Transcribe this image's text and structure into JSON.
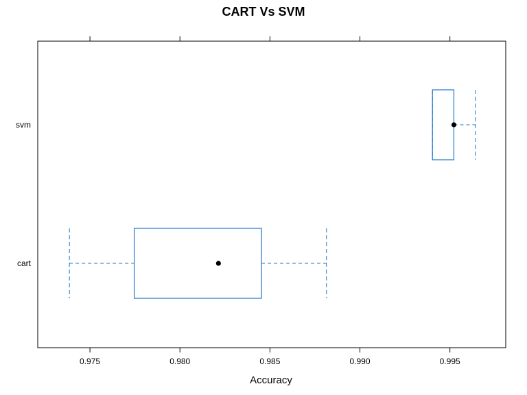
{
  "chart_data": {
    "type": "boxplot",
    "orientation": "horizontal",
    "title": "CART Vs SVM",
    "xlabel": "Accuracy",
    "ylabel": "",
    "xlim": [
      0.9721,
      0.9981
    ],
    "x_ticks": [
      0.975,
      0.98,
      0.985,
      0.99,
      0.995
    ],
    "x_tick_labels": [
      "0.975",
      "0.980",
      "0.985",
      "0.990",
      "0.995"
    ],
    "categories": [
      "cart",
      "svm"
    ],
    "boxes": [
      {
        "category": "cart",
        "min": 0.97386,
        "q1": 0.97746,
        "median": 0.98214,
        "q3": 0.98453,
        "max": 0.98814
      },
      {
        "category": "svm",
        "min": 0.99403,
        "q1": 0.99403,
        "median": 0.99522,
        "q3": 0.99522,
        "max": 0.99641
      }
    ],
    "colors": {
      "box": "#1f78c8",
      "median_dot": "#000000"
    },
    "grid": false
  }
}
